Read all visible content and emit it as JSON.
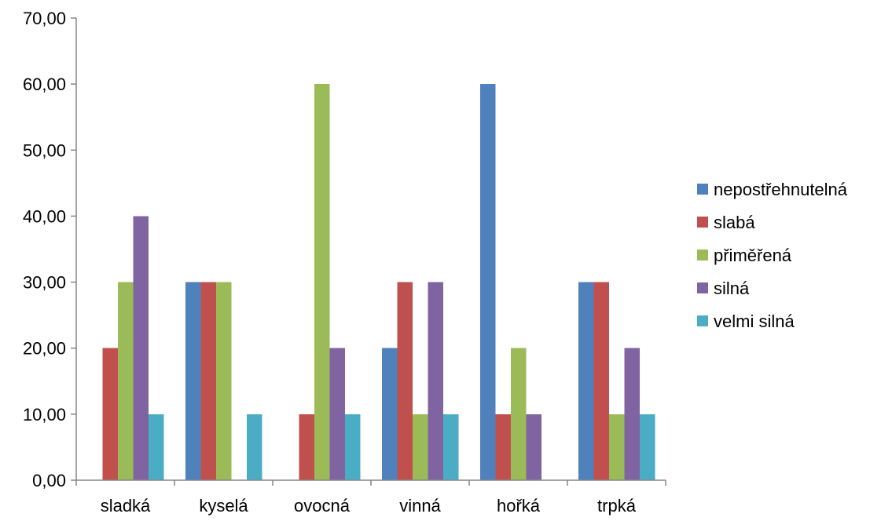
{
  "chart_data": {
    "type": "bar",
    "title": "",
    "xlabel": "",
    "ylabel": "",
    "categories": [
      "sladká",
      "kyselá",
      "ovocná",
      "vinná",
      "hořká",
      "trpká"
    ],
    "series": [
      {
        "name": "nepostřehnutelná",
        "color": "#4F81BD",
        "values": [
          0,
          30,
          0,
          20,
          60,
          30
        ]
      },
      {
        "name": "slabá",
        "color": "#C0504D",
        "values": [
          20,
          30,
          10,
          30,
          10,
          30
        ]
      },
      {
        "name": "přiměřená",
        "color": "#9BBB59",
        "values": [
          30,
          30,
          60,
          10,
          20,
          10
        ]
      },
      {
        "name": "silná",
        "color": "#8064A2",
        "values": [
          40,
          0,
          20,
          30,
          10,
          20
        ]
      },
      {
        "name": "velmi silná",
        "color": "#4BACC6",
        "values": [
          10,
          10,
          10,
          10,
          0,
          10
        ]
      }
    ],
    "ylim": [
      0,
      70
    ],
    "yticks": [
      "0,00",
      "10,00",
      "20,00",
      "30,00",
      "40,00",
      "50,00",
      "60,00",
      "70,00"
    ],
    "grid": false,
    "legend_position": "right"
  }
}
